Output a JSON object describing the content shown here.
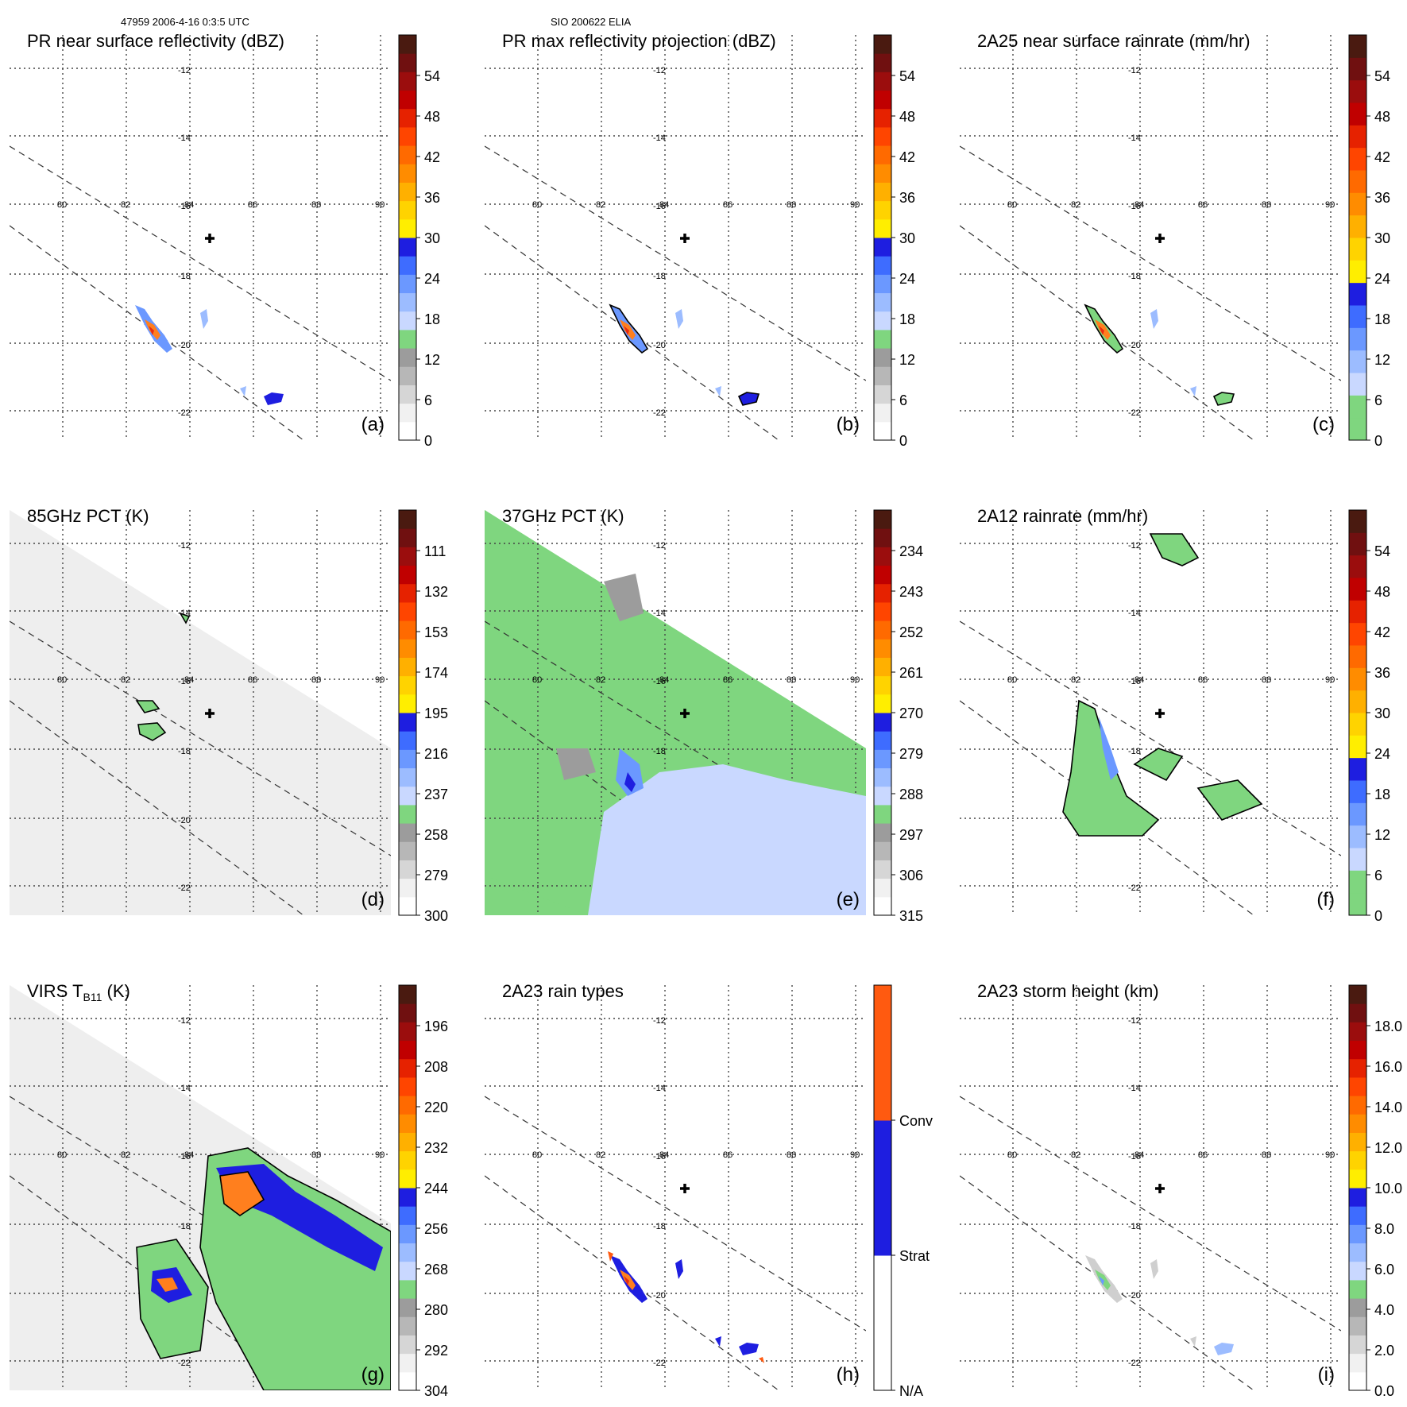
{
  "header": {
    "left": "47959 2006-4-16 0:3:5 UTC",
    "right": "SIO 200622 ELIA"
  },
  "map": {
    "lon_ticks": [
      "80",
      "82",
      "84",
      "86",
      "88",
      "90"
    ],
    "lat_ticks": [
      "-12",
      "-14",
      "-16",
      "-18",
      "-20",
      "-22"
    ]
  },
  "colors": {
    "green": "#7fd67f",
    "blue": "#1e1ee0",
    "orange": "#ff7f1e",
    "red": "#e82a12",
    "swath": "#eeeeee"
  },
  "chart_data": [
    {
      "id": "a",
      "type": "heatmap",
      "panel_label": "(a)",
      "title": "PR near surface reflectivity (dBZ)",
      "colorbar_ticks": [
        "0",
        "6",
        "12",
        "18",
        "24",
        "30",
        "36",
        "42",
        "48",
        "54"
      ],
      "colorbar_colors": [
        "#ffffff",
        "#f1f1f1",
        "#d6d6d6",
        "#b7b7b7",
        "#9c9c9c",
        "#7fd67f",
        "#c9d8ff",
        "#9cbcff",
        "#6b98ff",
        "#3e6cff",
        "#1e1ee0",
        "#ffee00",
        "#ffd300",
        "#ffb000",
        "#ff8c00",
        "#ff6a00",
        "#ff4500",
        "#e62200",
        "#c00000",
        "#9b0d0d",
        "#701010",
        "#4a1a10"
      ]
    },
    {
      "id": "b",
      "type": "heatmap",
      "panel_label": "(b)",
      "title": "PR max reflectivity projection (dBZ)",
      "colorbar_ticks": [
        "0",
        "6",
        "12",
        "18",
        "24",
        "30",
        "36",
        "42",
        "48",
        "54"
      ],
      "colorbar_colors": [
        "#ffffff",
        "#f1f1f1",
        "#d6d6d6",
        "#b7b7b7",
        "#9c9c9c",
        "#7fd67f",
        "#c9d8ff",
        "#9cbcff",
        "#6b98ff",
        "#3e6cff",
        "#1e1ee0",
        "#ffee00",
        "#ffd300",
        "#ffb000",
        "#ff8c00",
        "#ff6a00",
        "#ff4500",
        "#e62200",
        "#c00000",
        "#9b0d0d",
        "#701010",
        "#4a1a10"
      ]
    },
    {
      "id": "c",
      "type": "heatmap",
      "panel_label": "(c)",
      "title": "2A25 near surface rainrate (mm/hr)",
      "colorbar_ticks": [
        "0",
        "6",
        "12",
        "18",
        "24",
        "30",
        "36",
        "42",
        "48",
        "54"
      ],
      "colorbar_colors": [
        "#7fd67f",
        "#7fd67f",
        "#c9d8ff",
        "#9cbcff",
        "#6b98ff",
        "#3e6cff",
        "#1e1ee0",
        "#ffee00",
        "#ffd300",
        "#ffb000",
        "#ff8c00",
        "#ff6a00",
        "#ff4500",
        "#e62200",
        "#c00000",
        "#9b0d0d",
        "#701010",
        "#4a1a10"
      ]
    },
    {
      "id": "d",
      "type": "heatmap",
      "panel_label": "(d)",
      "title": "85GHz PCT (K)",
      "colorbar_ticks": [
        "300",
        "279",
        "258",
        "237",
        "216",
        "195",
        "174",
        "153",
        "132",
        "111"
      ],
      "colorbar_colors": [
        "#ffffff",
        "#f1f1f1",
        "#d6d6d6",
        "#b7b7b7",
        "#9c9c9c",
        "#7fd67f",
        "#c9d8ff",
        "#9cbcff",
        "#6b98ff",
        "#3e6cff",
        "#1e1ee0",
        "#ffee00",
        "#ffd300",
        "#ffb000",
        "#ff8c00",
        "#ff6a00",
        "#ff4500",
        "#e62200",
        "#c00000",
        "#9b0d0d",
        "#701010",
        "#4a1a10"
      ]
    },
    {
      "id": "e",
      "type": "heatmap",
      "panel_label": "(e)",
      "title": "37GHz PCT (K)",
      "colorbar_ticks": [
        "315",
        "306",
        "297",
        "288",
        "279",
        "270",
        "261",
        "252",
        "243",
        "234"
      ],
      "colorbar_colors": [
        "#ffffff",
        "#f1f1f1",
        "#d6d6d6",
        "#b7b7b7",
        "#9c9c9c",
        "#7fd67f",
        "#c9d8ff",
        "#9cbcff",
        "#6b98ff",
        "#3e6cff",
        "#1e1ee0",
        "#ffee00",
        "#ffd300",
        "#ffb000",
        "#ff8c00",
        "#ff6a00",
        "#ff4500",
        "#e62200",
        "#c00000",
        "#9b0d0d",
        "#701010",
        "#4a1a10"
      ]
    },
    {
      "id": "f",
      "type": "heatmap",
      "panel_label": "(f)",
      "title": "2A12 rainrate (mm/hr)",
      "colorbar_ticks": [
        "0",
        "6",
        "12",
        "18",
        "24",
        "30",
        "36",
        "42",
        "48",
        "54"
      ],
      "colorbar_colors": [
        "#7fd67f",
        "#7fd67f",
        "#c9d8ff",
        "#9cbcff",
        "#6b98ff",
        "#3e6cff",
        "#1e1ee0",
        "#ffee00",
        "#ffd300",
        "#ffb000",
        "#ff8c00",
        "#ff6a00",
        "#ff4500",
        "#e62200",
        "#c00000",
        "#9b0d0d",
        "#701010",
        "#4a1a10"
      ]
    },
    {
      "id": "g",
      "type": "heatmap",
      "panel_label": "(g)",
      "title": "VIRS T",
      "title_sub": "B11",
      "title_tail": " (K)",
      "colorbar_ticks": [
        "304",
        "292",
        "280",
        "268",
        "256",
        "244",
        "232",
        "220",
        "208",
        "196"
      ],
      "colorbar_colors": [
        "#ffffff",
        "#f1f1f1",
        "#d6d6d6",
        "#b7b7b7",
        "#9c9c9c",
        "#7fd67f",
        "#c9d8ff",
        "#9cbcff",
        "#6b98ff",
        "#3e6cff",
        "#1e1ee0",
        "#ffee00",
        "#ffd300",
        "#ffb000",
        "#ff8c00",
        "#ff6a00",
        "#ff4500",
        "#e62200",
        "#c00000",
        "#9b0d0d",
        "#701010",
        "#4a1a10"
      ]
    },
    {
      "id": "h",
      "type": "heatmap",
      "panel_label": "(h)",
      "title": "2A23 rain types",
      "colorbar_ticks": [
        "N/A",
        "Strat",
        "Conv"
      ],
      "colorbar_colors": [
        "#ffffff",
        "#1e1ee0",
        "#ff5a10"
      ]
    },
    {
      "id": "i",
      "type": "heatmap",
      "panel_label": "(i)",
      "title": "2A23 storm height (km)",
      "colorbar_ticks": [
        "0.0",
        "2.0",
        "4.0",
        "6.0",
        "8.0",
        "10.0",
        "12.0",
        "14.0",
        "16.0",
        "18.0"
      ],
      "colorbar_colors": [
        "#ffffff",
        "#f1f1f1",
        "#d6d6d6",
        "#b7b7b7",
        "#9c9c9c",
        "#7fd67f",
        "#c9d8ff",
        "#9cbcff",
        "#6b98ff",
        "#3e6cff",
        "#1e1ee0",
        "#ffee00",
        "#ffd300",
        "#ffb000",
        "#ff8c00",
        "#ff6a00",
        "#ff4500",
        "#e62200",
        "#c00000",
        "#9b0d0d",
        "#701010",
        "#4a1a10"
      ]
    }
  ]
}
